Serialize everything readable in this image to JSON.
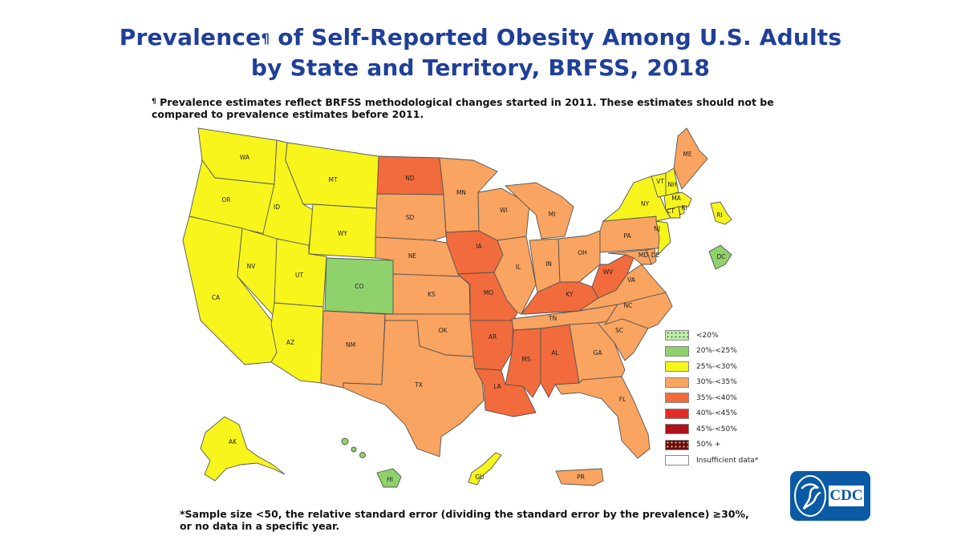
{
  "title": {
    "line1_pre": "Prevalence",
    "line1_sup": "¶",
    "line1_post": " of Self-Reported Obesity Among U.S. Adults",
    "line2": "by State and Territory, BRFSS, 2018"
  },
  "footnote_top": {
    "symbol": "¶",
    "text": " Prevalence estimates reflect BRFSS methodological changes started in 2011. These estimates should not be compared to prevalence estimates before 2011."
  },
  "footnote_bottom": {
    "line1": "*Sample size <50, the relative standard error (dividing the standard error by the prevalence) ≥30%,",
    "line2": "or no data in a specific year."
  },
  "colors": {
    "c20_25": "#8fd16a",
    "c25_30": "#f7f51c",
    "c30_35": "#f9a460",
    "c35_40": "#f26b3c",
    "c40_45": "#e22c25",
    "c45_50": "#b0101a",
    "c50": "#6a0a0a",
    "insufficient": "#ffffff",
    "lt20": "#c9ecb4"
  },
  "legend": [
    {
      "label": "<20%",
      "key": "lt20"
    },
    {
      "label": "20%-<25%",
      "key": "c20_25"
    },
    {
      "label": "25%-<30%",
      "key": "c25_30"
    },
    {
      "label": "30%-<35%",
      "key": "c30_35"
    },
    {
      "label": "35%-<40%",
      "key": "c35_40"
    },
    {
      "label": "40%-<45%",
      "key": "c40_45"
    },
    {
      "label": "45%-<50%",
      "key": "c45_50"
    },
    {
      "label": "50% +",
      "key": "c50"
    },
    {
      "label": "Insufficient data*",
      "key": "insufficient"
    }
  ],
  "states": [
    {
      "abbr": "WA",
      "category": "25%-<30%"
    },
    {
      "abbr": "OR",
      "category": "25%-<30%"
    },
    {
      "abbr": "CA",
      "category": "25%-<30%"
    },
    {
      "abbr": "ID",
      "category": "25%-<30%"
    },
    {
      "abbr": "NV",
      "category": "25%-<30%"
    },
    {
      "abbr": "MT",
      "category": "25%-<30%"
    },
    {
      "abbr": "WY",
      "category": "25%-<30%"
    },
    {
      "abbr": "UT",
      "category": "25%-<30%"
    },
    {
      "abbr": "AZ",
      "category": "25%-<30%"
    },
    {
      "abbr": "CO",
      "category": "20%-<25%"
    },
    {
      "abbr": "NM",
      "category": "30%-<35%"
    },
    {
      "abbr": "ND",
      "category": "35%-<40%"
    },
    {
      "abbr": "SD",
      "category": "30%-<35%"
    },
    {
      "abbr": "NE",
      "category": "30%-<35%"
    },
    {
      "abbr": "KS",
      "category": "30%-<35%"
    },
    {
      "abbr": "OK",
      "category": "30%-<35%"
    },
    {
      "abbr": "TX",
      "category": "30%-<35%"
    },
    {
      "abbr": "MN",
      "category": "30%-<35%"
    },
    {
      "abbr": "IA",
      "category": "35%-<40%"
    },
    {
      "abbr": "MO",
      "category": "35%-<40%"
    },
    {
      "abbr": "AR",
      "category": "35%-<40%"
    },
    {
      "abbr": "LA",
      "category": "35%-<40%"
    },
    {
      "abbr": "WI",
      "category": "30%-<35%"
    },
    {
      "abbr": "IL",
      "category": "30%-<35%"
    },
    {
      "abbr": "MI",
      "category": "30%-<35%"
    },
    {
      "abbr": "IN",
      "category": "30%-<35%"
    },
    {
      "abbr": "OH",
      "category": "30%-<35%"
    },
    {
      "abbr": "KY",
      "category": "35%-<40%"
    },
    {
      "abbr": "TN",
      "category": "30%-<35%"
    },
    {
      "abbr": "MS",
      "category": "35%-<40%"
    },
    {
      "abbr": "AL",
      "category": "35%-<40%"
    },
    {
      "abbr": "GA",
      "category": "30%-<35%"
    },
    {
      "abbr": "FL",
      "category": "30%-<35%"
    },
    {
      "abbr": "SC",
      "category": "30%-<35%"
    },
    {
      "abbr": "NC",
      "category": "30%-<35%"
    },
    {
      "abbr": "VA",
      "category": "30%-<35%"
    },
    {
      "abbr": "WV",
      "category": "35%-<40%"
    },
    {
      "abbr": "PA",
      "category": "30%-<35%"
    },
    {
      "abbr": "NY",
      "category": "25%-<30%"
    },
    {
      "abbr": "VT",
      "category": "25%-<30%"
    },
    {
      "abbr": "NH",
      "category": "25%-<30%"
    },
    {
      "abbr": "ME",
      "category": "30%-<35%"
    },
    {
      "abbr": "MA",
      "category": "25%-<30%"
    },
    {
      "abbr": "RI",
      "category": "25%-<30%"
    },
    {
      "abbr": "CT",
      "category": "25%-<30%"
    },
    {
      "abbr": "NJ",
      "category": "25%-<30%"
    },
    {
      "abbr": "MD",
      "category": "30%-<35%"
    },
    {
      "abbr": "DE",
      "category": "30%-<35%"
    },
    {
      "abbr": "DC",
      "category": "20%-<25%"
    },
    {
      "abbr": "AK",
      "category": "25%-<30%"
    },
    {
      "abbr": "HI",
      "category": "20%-<25%"
    },
    {
      "abbr": "GU",
      "category": "25%-<30%"
    },
    {
      "abbr": "PR",
      "category": "30%-<35%"
    }
  ],
  "inset_labels": {
    "ri": "RI",
    "dc": "DC"
  },
  "logo": {
    "text": "CDC"
  }
}
